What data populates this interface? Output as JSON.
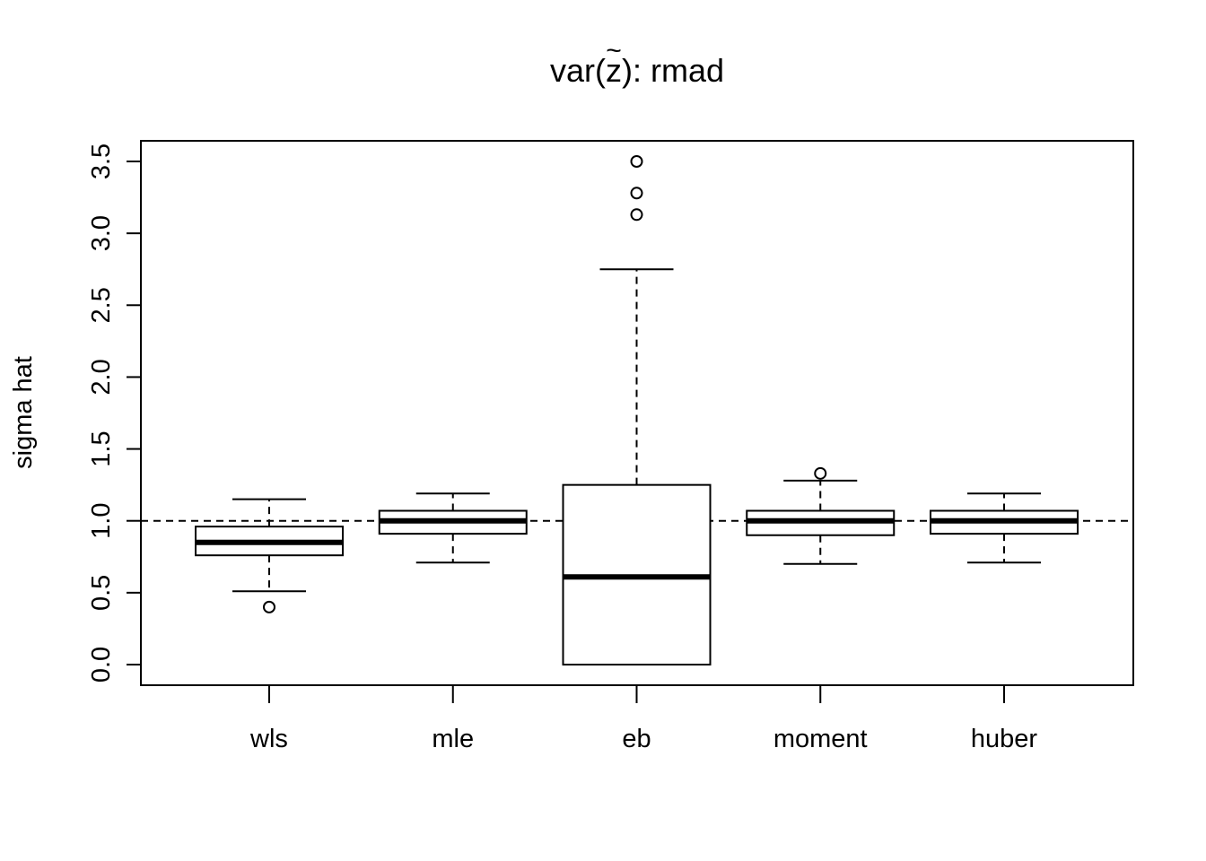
{
  "chart_data": {
    "type": "boxplot",
    "title": "var(z̃): rmad",
    "title_parts": {
      "prefix": "var(",
      "var": "z",
      "tilde": "~",
      "suffix": "): rmad"
    },
    "xlabel": "",
    "ylabel": "sigma hat",
    "ylim": [
      -0.15,
      3.65
    ],
    "yticks": [
      "0.0",
      "0.5",
      "1.0",
      "1.5",
      "2.0",
      "2.5",
      "3.0",
      "3.5"
    ],
    "reference_line": {
      "y": 1.0,
      "style": "dashed"
    },
    "categories": [
      "wls",
      "mle",
      "eb",
      "moment",
      "huber"
    ],
    "boxes": [
      {
        "name": "wls",
        "whisker_low": 0.51,
        "q1": 0.76,
        "median": 0.85,
        "q3": 0.96,
        "whisker_high": 1.15,
        "outliers": [
          0.4
        ]
      },
      {
        "name": "mle",
        "whisker_low": 0.71,
        "q1": 0.91,
        "median": 1.0,
        "q3": 1.07,
        "whisker_high": 1.19,
        "outliers": []
      },
      {
        "name": "eb",
        "whisker_low": 0.0,
        "q1": 0.0,
        "median": 0.61,
        "q3": 1.25,
        "whisker_high": 2.75,
        "outliers": [
          3.13,
          3.28,
          3.5
        ]
      },
      {
        "name": "moment",
        "whisker_low": 0.7,
        "q1": 0.9,
        "median": 1.0,
        "q3": 1.07,
        "whisker_high": 1.28,
        "outliers": [
          1.33
        ]
      },
      {
        "name": "huber",
        "whisker_low": 0.71,
        "q1": 0.91,
        "median": 1.0,
        "q3": 1.07,
        "whisker_high": 1.19,
        "outliers": []
      }
    ]
  }
}
